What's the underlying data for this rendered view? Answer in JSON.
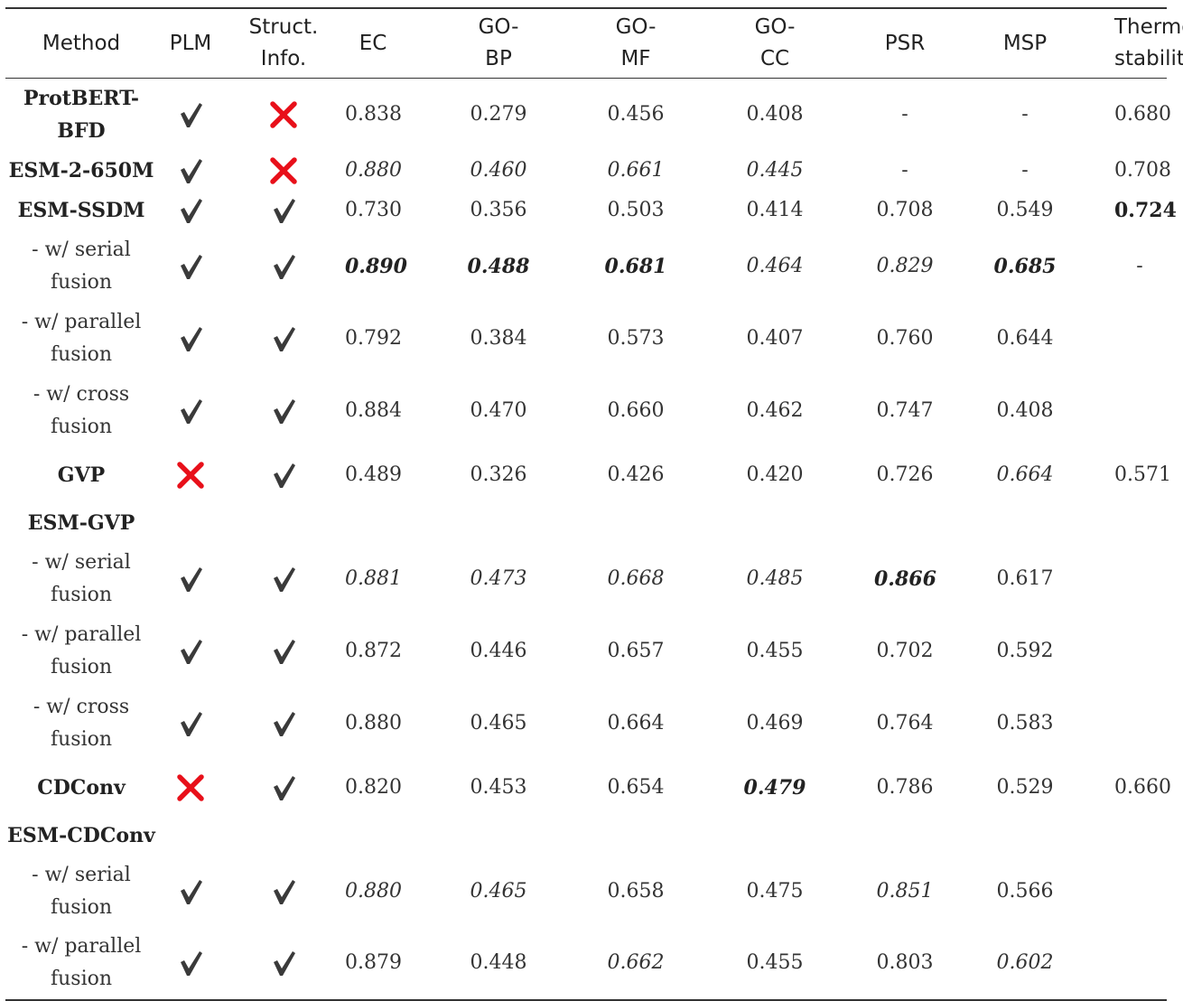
{
  "table": {
    "headers": [
      "Method",
      "PLM",
      "Struct.\nInfo.",
      "EC",
      "GO-\nBP",
      "GO-\nMF",
      "GO-\nCC",
      "PSR",
      "MSP",
      "Thermo\nstability"
    ],
    "rows": [
      {
        "method": "ProtBERT-\nBFD",
        "kind": "model",
        "plm": "check",
        "struct": "cross",
        "values": [
          "0.838",
          "0.279",
          "0.456",
          "0.408",
          "-",
          "-",
          "0.680"
        ],
        "styles": [
          "",
          "",
          "",
          "",
          "",
          "",
          ""
        ]
      },
      {
        "method": "ESM-2-650M",
        "kind": "model",
        "plm": "check",
        "struct": "cross",
        "values": [
          "0.880",
          "0.460",
          "0.661",
          "0.445",
          "-",
          "-",
          "0.708"
        ],
        "styles": [
          "italic",
          "italic",
          "italic",
          "italic",
          "",
          "",
          ""
        ]
      },
      {
        "method": "ESM-SSDM",
        "kind": "model",
        "plm": "check",
        "struct": "check",
        "values": [
          "0.730",
          "0.356",
          "0.503",
          "0.414",
          "0.708",
          "0.549",
          "0.724"
        ],
        "styles": [
          "",
          "",
          "",
          "",
          "",
          "",
          "bold"
        ]
      },
      {
        "method": "- w/ serial\nfusion",
        "kind": "variant",
        "plm": "check",
        "struct": "check",
        "values": [
          "0.890",
          "0.488",
          "0.681",
          "0.464",
          "0.829",
          "0.685",
          "-"
        ],
        "styles": [
          "bold italic",
          "bold italic",
          "bold italic",
          "italic",
          "italic",
          "bold italic",
          ""
        ]
      },
      {
        "method": "- w/ parallel\nfusion",
        "kind": "variant",
        "plm": "check",
        "struct": "check",
        "values": [
          "0.792",
          "0.384",
          "0.573",
          "0.407",
          "0.760",
          "0.644",
          ""
        ],
        "styles": [
          "",
          "",
          "",
          "",
          "",
          "",
          ""
        ]
      },
      {
        "method": "- w/ cross\nfusion",
        "kind": "variant",
        "plm": "check",
        "struct": "check",
        "values": [
          "0.884",
          "0.470",
          "0.660",
          "0.462",
          "0.747",
          "0.408",
          ""
        ],
        "styles": [
          "",
          "",
          "",
          "",
          "",
          "",
          ""
        ]
      },
      {
        "method": "GVP",
        "kind": "model",
        "plm": "cross",
        "struct": "check",
        "values": [
          "0.489",
          "0.326",
          "0.426",
          "0.420",
          "0.726",
          "0.664",
          "0.571"
        ],
        "styles": [
          "",
          "",
          "",
          "",
          "",
          "italic",
          ""
        ]
      },
      {
        "method": "ESM-GVP",
        "kind": "model",
        "plm": "",
        "struct": "",
        "values": [
          "",
          "",
          "",
          "",
          "",
          "",
          ""
        ],
        "styles": [
          "",
          "",
          "",
          "",
          "",
          "",
          ""
        ]
      },
      {
        "method": "- w/ serial\nfusion",
        "kind": "variant",
        "plm": "check",
        "struct": "check",
        "values": [
          "0.881",
          "0.473",
          "0.668",
          "0.485",
          "0.866",
          "0.617",
          ""
        ],
        "styles": [
          "italic",
          "italic",
          "italic",
          "italic",
          "bold italic",
          "",
          ""
        ]
      },
      {
        "method": "- w/ parallel\nfusion",
        "kind": "variant",
        "plm": "check",
        "struct": "check",
        "values": [
          "0.872",
          "0.446",
          "0.657",
          "0.455",
          "0.702",
          "0.592",
          ""
        ],
        "styles": [
          "",
          "",
          "",
          "",
          "",
          "",
          ""
        ]
      },
      {
        "method": "- w/ cross\nfusion",
        "kind": "variant",
        "plm": "check",
        "struct": "check",
        "values": [
          "0.880",
          "0.465",
          "0.664",
          "0.469",
          "0.764",
          "0.583",
          ""
        ],
        "styles": [
          "",
          "",
          "",
          "",
          "",
          "",
          ""
        ]
      },
      {
        "method": "CDConv",
        "kind": "model",
        "plm": "cross",
        "struct": "check",
        "values": [
          "0.820",
          "0.453",
          "0.654",
          "0.479",
          "0.786",
          "0.529",
          "0.660"
        ],
        "styles": [
          "",
          "",
          "",
          "bold italic",
          "",
          "",
          ""
        ]
      },
      {
        "method": "ESM-CDConv",
        "kind": "model",
        "plm": "",
        "struct": "",
        "values": [
          "",
          "",
          "",
          "",
          "",
          "",
          ""
        ],
        "styles": [
          "",
          "",
          "",
          "",
          "",
          "",
          ""
        ]
      },
      {
        "method": "- w/ serial\nfusion",
        "kind": "variant",
        "plm": "check",
        "struct": "check",
        "values": [
          "0.880",
          "0.465",
          "0.658",
          "0.475",
          "0.851",
          "0.566",
          ""
        ],
        "styles": [
          "italic",
          "italic",
          "",
          "",
          "italic",
          "",
          ""
        ]
      },
      {
        "method": "- w/ parallel\nfusion",
        "kind": "variant",
        "plm": "check",
        "struct": "check",
        "values": [
          "0.879",
          "0.448",
          "0.662",
          "0.455",
          "0.803",
          "0.602",
          ""
        ],
        "styles": [
          "",
          "",
          "italic",
          "",
          "",
          "italic",
          ""
        ]
      }
    ]
  },
  "marks": {
    "check": {
      "icon": "checkmark-icon",
      "color": "#3a3a3a"
    },
    "cross": {
      "icon": "cross-icon",
      "color": "#e8101a"
    }
  }
}
